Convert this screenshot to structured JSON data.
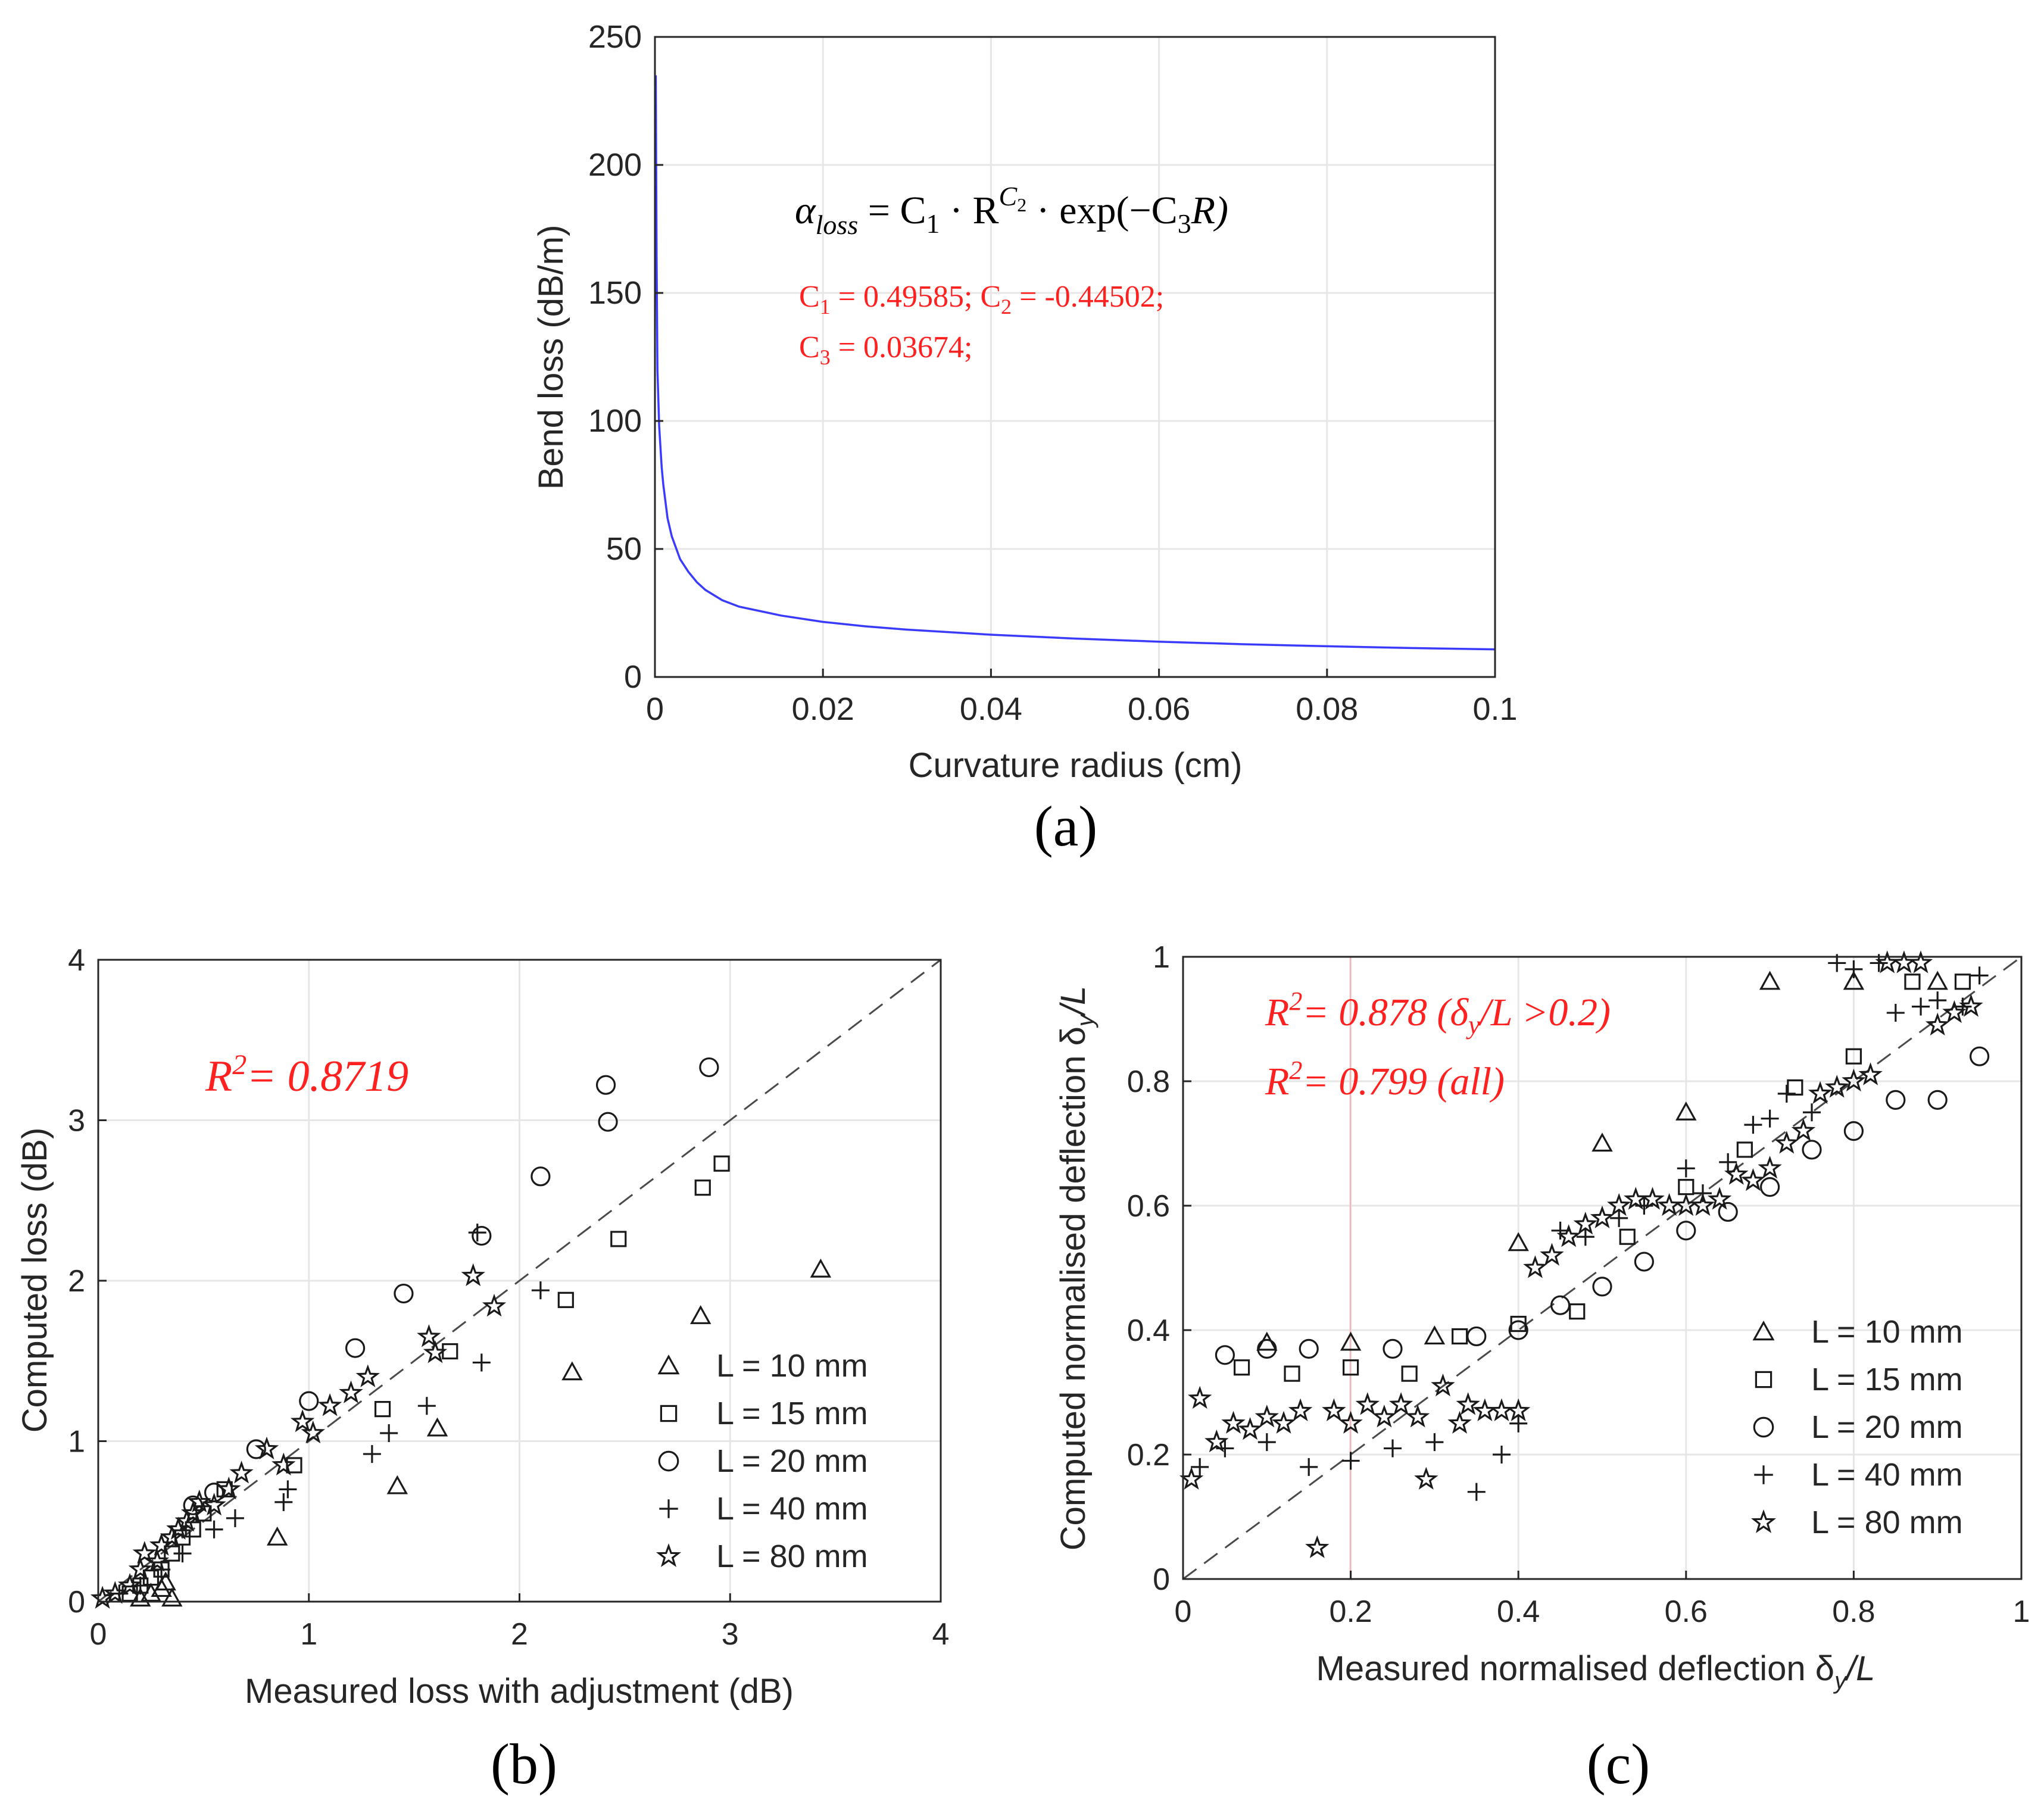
{
  "chart_data": [
    {
      "id": "a",
      "type": "line",
      "caption": "(a)",
      "xlabel": "Curvature radius (cm)",
      "ylabel": "Bend loss (dB/m)",
      "xlim": [
        0,
        0.1
      ],
      "ylim": [
        0,
        250
      ],
      "xticks": [
        "0",
        "0.02",
        "0.04",
        "0.06",
        "0.08",
        "0.1"
      ],
      "yticks": [
        "0",
        "50",
        "100",
        "150",
        "200",
        "250"
      ],
      "grid": true,
      "series": [
        {
          "name": "Bend loss fit",
          "color": "#3b3bff",
          "x": [
            0.0001,
            0.0002,
            0.0003,
            0.0005,
            0.0008,
            0.001,
            0.0015,
            0.002,
            0.003,
            0.004,
            0.005,
            0.006,
            0.008,
            0.01,
            0.015,
            0.02,
            0.025,
            0.03,
            0.04,
            0.05,
            0.06,
            0.07,
            0.08,
            0.09,
            0.1
          ],
          "y": [
            235,
            163,
            120,
            98,
            82,
            75,
            62,
            55,
            46,
            41,
            37,
            34,
            30,
            27.5,
            24,
            21.5,
            19.8,
            18.5,
            16.5,
            15,
            13.8,
            12.8,
            12,
            11.3,
            10.8
          ]
        }
      ],
      "annotations": {
        "formula": {
          "alpha": "α",
          "alpha_sub": "loss",
          "mid": " = C",
          "c1_sub": "1",
          "dot1": " · R",
          "sup_base": "C",
          "sup_sub": "2",
          "dot2": " · exp(−C",
          "c3_sub": "3",
          "end": "R)"
        },
        "coef_line1": {
          "c1": "C",
          "c1_sub": "1",
          "c1_val": " = 0.49585; C",
          "c2_sub": "2",
          "c2_val": " = -0.44502;"
        },
        "coef_line2": {
          "c3": "C",
          "c3_sub": "3",
          "c3_val": " = 0.03674;"
        }
      }
    },
    {
      "id": "b",
      "type": "scatter",
      "caption": "(b)",
      "xlabel": "Measured loss with adjustment (dB)",
      "ylabel": "Computed loss (dB)",
      "xlim": [
        0,
        4
      ],
      "ylim": [
        0,
        4
      ],
      "xticks": [
        "0",
        "1",
        "2",
        "3",
        "4"
      ],
      "yticks": [
        "0",
        "1",
        "2",
        "3",
        "4"
      ],
      "grid": true,
      "r2": {
        "base": "R",
        "sup": "2",
        "text": "= 0.8719"
      },
      "legend": [
        "L = 10 mm",
        "L = 15 mm",
        "L = 20 mm",
        "L = 40 mm",
        "L = 80 mm"
      ],
      "legend_position": "bottom-right",
      "series": [
        {
          "name": "L = 10 mm",
          "marker": "triangle",
          "points": [
            [
              0.2,
              0.02
            ],
            [
              0.25,
              0.05
            ],
            [
              0.3,
              0.08
            ],
            [
              0.32,
              0.12
            ],
            [
              0.35,
              0.02
            ],
            [
              0.85,
              0.4
            ],
            [
              1.42,
              0.72
            ],
            [
              1.61,
              1.08
            ],
            [
              2.25,
              1.43
            ],
            [
              2.86,
              1.78
            ],
            [
              3.43,
              2.07
            ]
          ]
        },
        {
          "name": "L = 15 mm",
          "marker": "square",
          "points": [
            [
              0.15,
              0.05
            ],
            [
              0.2,
              0.1
            ],
            [
              0.25,
              0.15
            ],
            [
              0.3,
              0.2
            ],
            [
              0.35,
              0.3
            ],
            [
              0.4,
              0.4
            ],
            [
              0.45,
              0.45
            ],
            [
              0.5,
              0.55
            ],
            [
              0.6,
              0.7
            ],
            [
              0.93,
              0.85
            ],
            [
              1.35,
              1.2
            ],
            [
              1.67,
              1.56
            ],
            [
              2.22,
              1.88
            ],
            [
              2.47,
              2.26
            ],
            [
              2.87,
              2.58
            ],
            [
              2.96,
              2.73
            ]
          ]
        },
        {
          "name": "L = 20 mm",
          "marker": "circle",
          "points": [
            [
              0.45,
              0.6
            ],
            [
              0.55,
              0.68
            ],
            [
              0.75,
              0.95
            ],
            [
              1.0,
              1.25
            ],
            [
              1.22,
              1.58
            ],
            [
              1.45,
              1.92
            ],
            [
              1.82,
              2.28
            ],
            [
              2.1,
              2.65
            ],
            [
              2.42,
              2.99
            ],
            [
              2.41,
              3.22
            ],
            [
              2.9,
              3.33
            ]
          ]
        },
        {
          "name": "L = 40 mm",
          "marker": "plus",
          "points": [
            [
              0.1,
              0.05
            ],
            [
              0.2,
              0.1
            ],
            [
              0.3,
              0.2
            ],
            [
              0.4,
              0.3
            ],
            [
              0.55,
              0.45
            ],
            [
              0.65,
              0.52
            ],
            [
              0.88,
              0.62
            ],
            [
              0.9,
              0.7
            ],
            [
              1.3,
              0.92
            ],
            [
              1.38,
              1.05
            ],
            [
              1.56,
              1.22
            ],
            [
              1.82,
              1.49
            ],
            [
              2.1,
              1.94
            ],
            [
              1.8,
              2.3
            ]
          ]
        },
        {
          "name": "L = 80 mm",
          "marker": "star",
          "points": [
            [
              0.02,
              0.02
            ],
            [
              0.08,
              0.05
            ],
            [
              0.15,
              0.1
            ],
            [
              0.2,
              0.2
            ],
            [
              0.22,
              0.3
            ],
            [
              0.28,
              0.25
            ],
            [
              0.3,
              0.35
            ],
            [
              0.35,
              0.4
            ],
            [
              0.38,
              0.45
            ],
            [
              0.42,
              0.5
            ],
            [
              0.45,
              0.55
            ],
            [
              0.48,
              0.62
            ],
            [
              0.55,
              0.6
            ],
            [
              0.62,
              0.7
            ],
            [
              0.68,
              0.8
            ],
            [
              0.8,
              0.95
            ],
            [
              0.88,
              0.85
            ],
            [
              0.97,
              1.12
            ],
            [
              1.02,
              1.05
            ],
            [
              1.1,
              1.22
            ],
            [
              1.2,
              1.3
            ],
            [
              1.28,
              1.4
            ],
            [
              1.57,
              1.65
            ],
            [
              1.6,
              1.55
            ],
            [
              1.78,
              2.03
            ],
            [
              1.88,
              1.84
            ]
          ]
        }
      ]
    },
    {
      "id": "c",
      "type": "scatter",
      "caption": "(c)",
      "xlabel": "Measured normalised deflection δ",
      "xlabel_sub": "y",
      "xlabel_end": "/L",
      "ylabel": "Computed normalised deflection δ",
      "ylabel_sub": "y",
      "ylabel_end": "/L",
      "xlim": [
        0,
        1
      ],
      "ylim": [
        0,
        1
      ],
      "xticks": [
        "0",
        "0.2",
        "0.4",
        "0.6",
        "0.8",
        "1"
      ],
      "yticks": [
        "0",
        "0.2",
        "0.4",
        "0.6",
        "0.8",
        "1"
      ],
      "grid": true,
      "r2_line1": {
        "base": "R",
        "sup": "2",
        "a": "= 0.878 (δ",
        "sub": "y",
        "b": "/L >0.2)"
      },
      "r2_line2": {
        "base": "R",
        "sup": "2",
        "a": "= 0.799 (all)"
      },
      "legend": [
        "L = 10 mm",
        "L = 15 mm",
        "L = 20 mm",
        "L = 40 mm",
        "L = 80 mm"
      ],
      "legend_position": "bottom-right",
      "series": [
        {
          "name": "L = 10 mm",
          "marker": "triangle",
          "points": [
            [
              0.1,
              0.38
            ],
            [
              0.2,
              0.38
            ],
            [
              0.3,
              0.39
            ],
            [
              0.4,
              0.54
            ],
            [
              0.5,
              0.7
            ],
            [
              0.6,
              0.75
            ],
            [
              0.7,
              0.96
            ],
            [
              0.8,
              0.96
            ],
            [
              0.9,
              0.96
            ]
          ]
        },
        {
          "name": "L = 15 mm",
          "marker": "square",
          "points": [
            [
              0.07,
              0.34
            ],
            [
              0.13,
              0.33
            ],
            [
              0.2,
              0.34
            ],
            [
              0.27,
              0.33
            ],
            [
              0.33,
              0.39
            ],
            [
              0.4,
              0.41
            ],
            [
              0.47,
              0.43
            ],
            [
              0.53,
              0.55
            ],
            [
              0.6,
              0.63
            ],
            [
              0.67,
              0.69
            ],
            [
              0.73,
              0.79
            ],
            [
              0.8,
              0.84
            ],
            [
              0.87,
              0.96
            ],
            [
              0.93,
              0.96
            ]
          ]
        },
        {
          "name": "L = 20 mm",
          "marker": "circle",
          "points": [
            [
              0.05,
              0.36
            ],
            [
              0.1,
              0.37
            ],
            [
              0.15,
              0.37
            ],
            [
              0.25,
              0.37
            ],
            [
              0.35,
              0.39
            ],
            [
              0.4,
              0.4
            ],
            [
              0.45,
              0.44
            ],
            [
              0.5,
              0.47
            ],
            [
              0.55,
              0.51
            ],
            [
              0.6,
              0.56
            ],
            [
              0.65,
              0.59
            ],
            [
              0.7,
              0.63
            ],
            [
              0.75,
              0.69
            ],
            [
              0.8,
              0.72
            ],
            [
              0.85,
              0.77
            ],
            [
              0.9,
              0.77
            ],
            [
              0.95,
              0.84
            ]
          ]
        },
        {
          "name": "L = 40 mm",
          "marker": "plus",
          "points": [
            [
              0.02,
              0.18
            ],
            [
              0.05,
              0.21
            ],
            [
              0.1,
              0.22
            ],
            [
              0.15,
              0.18
            ],
            [
              0.2,
              0.19
            ],
            [
              0.25,
              0.21
            ],
            [
              0.3,
              0.22
            ],
            [
              0.35,
              0.14
            ],
            [
              0.38,
              0.2
            ],
            [
              0.4,
              0.25
            ],
            [
              0.45,
              0.56
            ],
            [
              0.48,
              0.55
            ],
            [
              0.52,
              0.58
            ],
            [
              0.55,
              0.6
            ],
            [
              0.6,
              0.66
            ],
            [
              0.62,
              0.62
            ],
            [
              0.65,
              0.67
            ],
            [
              0.68,
              0.73
            ],
            [
              0.7,
              0.74
            ],
            [
              0.72,
              0.78
            ],
            [
              0.75,
              0.75
            ],
            [
              0.78,
              0.99
            ],
            [
              0.8,
              0.98
            ],
            [
              0.83,
              0.99
            ],
            [
              0.85,
              0.91
            ],
            [
              0.88,
              0.92
            ],
            [
              0.9,
              0.93
            ],
            [
              0.93,
              0.92
            ],
            [
              0.95,
              0.97
            ]
          ]
        },
        {
          "name": "L = 80 mm",
          "marker": "star",
          "points": [
            [
              0.01,
              0.16
            ],
            [
              0.02,
              0.29
            ],
            [
              0.04,
              0.22
            ],
            [
              0.06,
              0.25
            ],
            [
              0.08,
              0.24
            ],
            [
              0.1,
              0.26
            ],
            [
              0.12,
              0.25
            ],
            [
              0.14,
              0.27
            ],
            [
              0.16,
              0.05
            ],
            [
              0.18,
              0.27
            ],
            [
              0.2,
              0.25
            ],
            [
              0.22,
              0.28
            ],
            [
              0.24,
              0.26
            ],
            [
              0.26,
              0.28
            ],
            [
              0.28,
              0.26
            ],
            [
              0.29,
              0.16
            ],
            [
              0.31,
              0.31
            ],
            [
              0.33,
              0.25
            ],
            [
              0.34,
              0.28
            ],
            [
              0.36,
              0.27
            ],
            [
              0.38,
              0.27
            ],
            [
              0.4,
              0.27
            ],
            [
              0.42,
              0.5
            ],
            [
              0.44,
              0.52
            ],
            [
              0.46,
              0.55
            ],
            [
              0.48,
              0.57
            ],
            [
              0.5,
              0.58
            ],
            [
              0.52,
              0.6
            ],
            [
              0.54,
              0.61
            ],
            [
              0.56,
              0.61
            ],
            [
              0.58,
              0.6
            ],
            [
              0.6,
              0.6
            ],
            [
              0.62,
              0.6
            ],
            [
              0.64,
              0.61
            ],
            [
              0.66,
              0.65
            ],
            [
              0.68,
              0.64
            ],
            [
              0.7,
              0.66
            ],
            [
              0.72,
              0.7
            ],
            [
              0.74,
              0.72
            ],
            [
              0.76,
              0.78
            ],
            [
              0.78,
              0.79
            ],
            [
              0.8,
              0.8
            ],
            [
              0.82,
              0.81
            ],
            [
              0.84,
              0.99
            ],
            [
              0.86,
              0.99
            ],
            [
              0.88,
              0.99
            ],
            [
              0.9,
              0.89
            ],
            [
              0.92,
              0.91
            ],
            [
              0.94,
              0.92
            ]
          ]
        }
      ]
    }
  ],
  "colors": {
    "curve": "#3b3bff",
    "annotation": "#ff2020",
    "axes": "#262626",
    "grid": "#e6e6e6"
  }
}
